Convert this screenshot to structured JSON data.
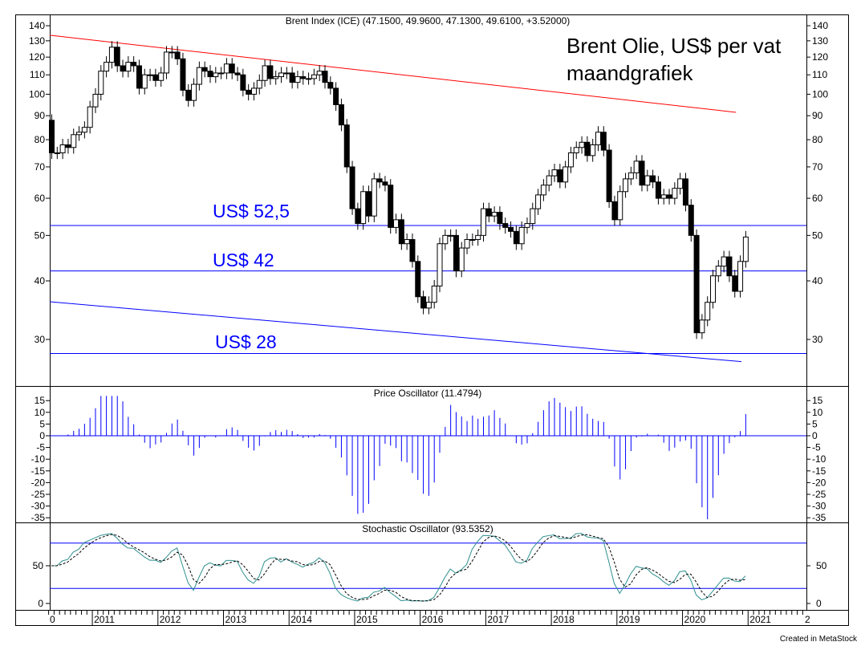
{
  "chart_data": {
    "type": "candlestick",
    "title": "Brent Index (ICE) (47.1500, 49.9600, 47.1300, 49.6100, +3.52000)",
    "annotation_line1": "Brent Olie, US$ per vat",
    "annotation_line2": "maandgrafiek",
    "frequency": "monthly",
    "start": "2010-05",
    "first_open": 88,
    "closes": [
      75,
      75,
      78,
      77,
      82,
      83,
      85,
      94,
      100,
      112,
      117,
      126,
      115,
      112,
      117,
      115,
      103,
      110,
      110,
      107,
      111,
      123,
      123,
      119,
      102,
      97,
      105,
      114,
      112,
      109,
      111,
      111,
      116,
      111,
      110,
      102,
      100,
      103,
      107,
      115,
      108,
      109,
      111,
      111,
      106,
      109,
      108,
      108,
      110,
      112,
      106,
      103,
      95,
      86,
      70,
      57,
      53,
      62,
      55,
      66,
      65,
      64,
      52,
      54,
      48,
      49,
      44,
      37,
      35,
      36,
      39,
      48,
      50,
      50,
      42,
      47,
      49,
      49,
      50,
      57,
      55,
      56,
      53,
      52,
      51,
      48,
      52,
      53,
      57,
      61,
      64,
      67,
      69,
      65,
      70,
      75,
      77,
      79,
      74,
      78,
      83,
      76,
      59,
      54,
      62,
      66,
      68,
      72,
      64,
      67,
      65,
      60,
      61,
      60,
      63,
      66,
      58,
      50,
      31,
      33,
      36,
      41,
      43,
      45,
      41,
      38,
      44,
      49.61
    ],
    "y_scale": "log",
    "ylim": [
      26,
      145
    ],
    "y_ticks": [
      140,
      130,
      120,
      110,
      100,
      90,
      80,
      70,
      60,
      50,
      40,
      30
    ],
    "x_ticks": [
      "2011",
      "2012",
      "2013",
      "2014",
      "2015",
      "2016",
      "2017",
      "2018",
      "2019",
      "2020",
      "2021"
    ],
    "x_first_label": "0",
    "x_last_label": "2",
    "horizontal_levels": [
      {
        "value": 52.5,
        "label": "US$ 52,5"
      },
      {
        "value": 42,
        "label": "US$ 42"
      },
      {
        "value": 28,
        "label": "US$ 28"
      }
    ],
    "trendlines": [
      {
        "name": "resistance",
        "color": "#ff0000",
        "from": [
          "2010-05",
          133.6
        ],
        "to": [
          "2020-10",
          91.5
        ]
      },
      {
        "name": "support",
        "color": "#0000ff",
        "from": [
          "2010-05",
          36.1
        ],
        "to": [
          "2020-11",
          26.9
        ]
      }
    ],
    "price_oscillator": {
      "title": "Price Oscillator (11.4794)",
      "ylim": [
        -37,
        18
      ],
      "y_ticks": [
        15,
        10,
        5,
        0,
        -5,
        -10,
        -15,
        -20,
        -25,
        -30,
        -35
      ],
      "color": "#0000ff"
    },
    "stochastic": {
      "title": "Stochastic Oscillator (93.5352)",
      "ylim": [
        -5,
        100
      ],
      "y_ticks": [
        50,
        0
      ],
      "levels": [
        80,
        20
      ],
      "k_color": "#2f8f8f",
      "d_color": "#000000"
    },
    "credit": "Created in MetaStock"
  }
}
